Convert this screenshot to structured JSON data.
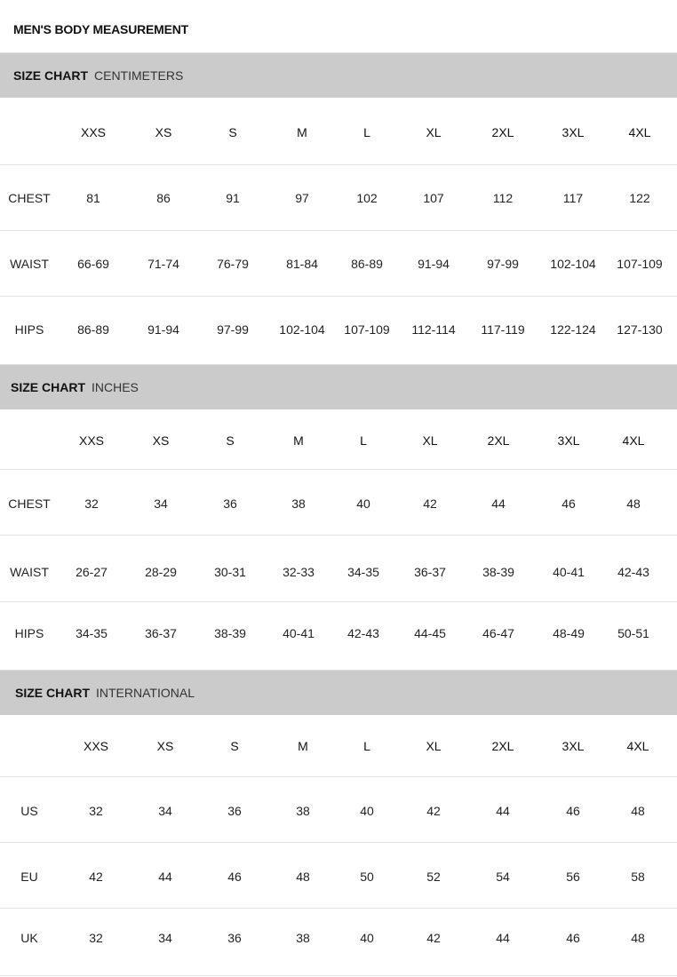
{
  "title": "MEN'S BODY MEASUREMENT",
  "colors": {
    "band": "#cbcbcb",
    "divider": "#e2e2e2"
  },
  "sections": [
    {
      "label": "SIZE CHART",
      "unit": "CENTIMETERS",
      "sizes": [
        "XXS",
        "XS",
        "S",
        "M",
        "L",
        "XL",
        "2XL",
        "3XL",
        "4XL"
      ],
      "rows": [
        {
          "name": "CHEST",
          "values": [
            "81",
            "86",
            "91",
            "97",
            "102",
            "107",
            "112",
            "117",
            "122"
          ]
        },
        {
          "name": "WAIST",
          "values": [
            "66-69",
            "71-74",
            "76-79",
            "81-84",
            "86-89",
            "91-94",
            "97-99",
            "102-104",
            "107-109"
          ]
        },
        {
          "name": "HIPS",
          "values": [
            "86-89",
            "91-94",
            "97-99",
            "102-104",
            "107-109",
            "112-114",
            "117-119",
            "122-124",
            "127-130"
          ]
        }
      ]
    },
    {
      "label": "SIZE CHART",
      "unit": "INCHES",
      "sizes": [
        "XXS",
        "XS",
        "S",
        "M",
        "L",
        "XL",
        "2XL",
        "3XL",
        "4XL"
      ],
      "rows": [
        {
          "name": "CHEST",
          "values": [
            "32",
            "34",
            "36",
            "38",
            "40",
            "42",
            "44",
            "46",
            "48"
          ]
        },
        {
          "name": "WAIST",
          "values": [
            "26-27",
            "28-29",
            "30-31",
            "32-33",
            "34-35",
            "36-37",
            "38-39",
            "40-41",
            "42-43"
          ]
        },
        {
          "name": "HIPS",
          "values": [
            "34-35",
            "36-37",
            "38-39",
            "40-41",
            "42-43",
            "44-45",
            "46-47",
            "48-49",
            "50-51"
          ]
        }
      ]
    },
    {
      "label": "SIZE CHART",
      "unit": "INTERNATIONAL",
      "sizes": [
        "XXS",
        "XS",
        "S",
        "M",
        "L",
        "XL",
        "2XL",
        "3XL",
        "4XL"
      ],
      "rows": [
        {
          "name": "US",
          "values": [
            "32",
            "34",
            "36",
            "38",
            "40",
            "42",
            "44",
            "46",
            "48"
          ]
        },
        {
          "name": "EU",
          "values": [
            "42",
            "44",
            "46",
            "48",
            "50",
            "52",
            "54",
            "56",
            "58"
          ]
        },
        {
          "name": "UK",
          "values": [
            "32",
            "34",
            "36",
            "38",
            "40",
            "42",
            "44",
            "46",
            "48"
          ]
        }
      ]
    }
  ]
}
